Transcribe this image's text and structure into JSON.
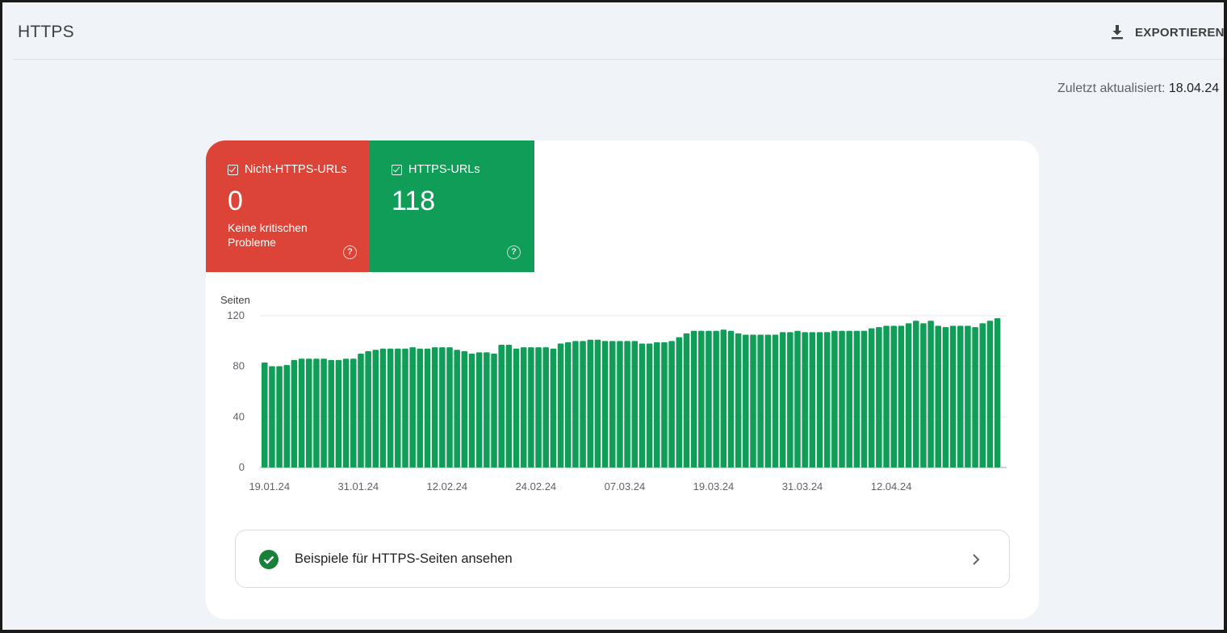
{
  "header": {
    "title": "HTTPS",
    "export_label": "EXPORTIEREN"
  },
  "status": {
    "last_updated_label": "Zuletzt aktualisiert:",
    "last_updated_value": "18.04.24"
  },
  "tiles": [
    {
      "label": "Nicht-HTTPS-URLs",
      "value": "0",
      "subtitle": "Keine kritischen Probleme",
      "color": "#db4437",
      "checked": true
    },
    {
      "label": "HTTPS-URLs",
      "value": "118",
      "subtitle": "",
      "color": "#0f9d58",
      "checked": true
    }
  ],
  "examples": {
    "label": "Beispiele für HTTPS-Seiten ansehen"
  },
  "colors": {
    "bar": "#0f9d58",
    "grid": "#e8eaed",
    "axis_text": "#5f6368"
  },
  "chart_data": {
    "type": "bar",
    "ylabel": "Seiten",
    "ylim": [
      0,
      120
    ],
    "yticks": [
      0,
      40,
      80,
      120
    ],
    "xtick_labels": [
      "19.01.24",
      "31.01.24",
      "12.02.24",
      "24.02.24",
      "07.03.24",
      "19.03.24",
      "31.03.24",
      "12.04.24"
    ],
    "start_date": "19.01.24",
    "grid": true,
    "series": [
      {
        "values": [
          83,
          80,
          80,
          81,
          85,
          86,
          86,
          86,
          86,
          85,
          85,
          86,
          86,
          90,
          92,
          93,
          94,
          94,
          94,
          94,
          95,
          94,
          94,
          95,
          95,
          95,
          93,
          92,
          90,
          91,
          91,
          90,
          97,
          97,
          94,
          95,
          95,
          95,
          95,
          94,
          98,
          99,
          100,
          100,
          101,
          101,
          100,
          100,
          100,
          100,
          100,
          98,
          98,
          99,
          99,
          100,
          103,
          106,
          108,
          108,
          108,
          108,
          109,
          108,
          106,
          105,
          105,
          105,
          105,
          105,
          107,
          107,
          108,
          107,
          107,
          107,
          107,
          108,
          108,
          108,
          108,
          108,
          110,
          111,
          112,
          112,
          112,
          114,
          116,
          114,
          116,
          112,
          111,
          112,
          112,
          112,
          111,
          114,
          116,
          118
        ]
      }
    ]
  }
}
